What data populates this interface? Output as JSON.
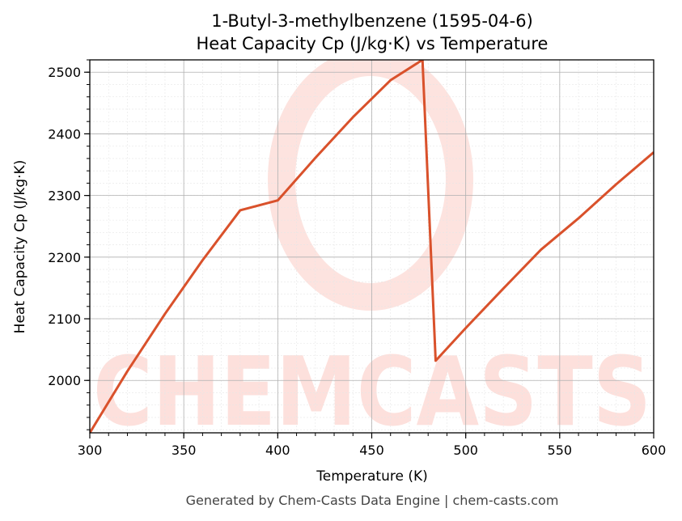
{
  "chart_data": {
    "type": "line",
    "title": "1-Butyl-3-methylbenzene (1595-04-6)",
    "subtitle": "Heat Capacity Cp (J/kg·K) vs Temperature",
    "xlabel": "Temperature (K)",
    "ylabel": "Heat Capacity Cp (J/kg·K)",
    "xlim": [
      300,
      600
    ],
    "ylim": [
      1915,
      2520
    ],
    "xticks": [
      300,
      350,
      400,
      450,
      500,
      550,
      600
    ],
    "yticks": [
      2000,
      2100,
      2200,
      2300,
      2400,
      2500
    ],
    "grid": true,
    "line_color": "#d9512b",
    "series": [
      {
        "x": [
          300,
          320,
          340,
          360,
          380,
          400,
          420,
          440,
          460,
          477,
          484,
          500,
          520,
          540,
          560,
          580,
          600
        ],
        "values": [
          1915,
          2015,
          2108,
          2195,
          2276,
          2292,
          2361,
          2427,
          2487,
          2520,
          2032,
          2085,
          2149,
          2212,
          2263,
          2318,
          2370
        ]
      }
    ]
  },
  "footer": "Generated by Chem-Casts Data Engine | chem-casts.com",
  "watermark": "CHEMCASTS"
}
